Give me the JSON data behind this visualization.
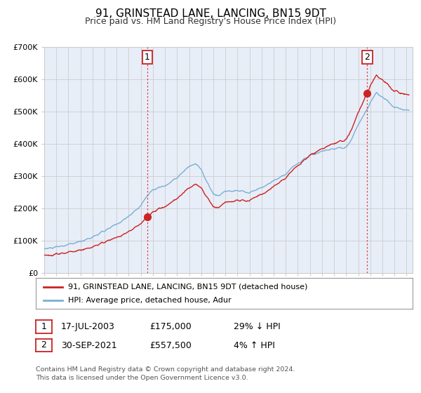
{
  "title": "91, GRINSTEAD LANE, LANCING, BN15 9DT",
  "subtitle": "Price paid vs. HM Land Registry's House Price Index (HPI)",
  "background_color": "#ffffff",
  "plot_bg_color": "#e8eef8",
  "ylim": [
    0,
    700000
  ],
  "yticks": [
    0,
    100000,
    200000,
    300000,
    400000,
    500000,
    600000,
    700000
  ],
  "ytick_labels": [
    "£0",
    "£100K",
    "£200K",
    "£300K",
    "£400K",
    "£500K",
    "£600K",
    "£700K"
  ],
  "xlim_start": 1995.0,
  "xlim_end": 2025.5,
  "sale1_date_num": 2003.54,
  "sale1_price": 175000,
  "sale2_date_num": 2021.75,
  "sale2_price": 557500,
  "legend_line1": "91, GRINSTEAD LANE, LANCING, BN15 9DT (detached house)",
  "legend_line2": "HPI: Average price, detached house, Adur",
  "table_row1": [
    "1",
    "17-JUL-2003",
    "£175,000",
    "29% ↓ HPI"
  ],
  "table_row2": [
    "2",
    "30-SEP-2021",
    "£557,500",
    "4% ↑ HPI"
  ],
  "footer": "Contains HM Land Registry data © Crown copyright and database right 2024.\nThis data is licensed under the Open Government Licence v3.0.",
  "hpi_color": "#7ab0d4",
  "sale_color": "#cc2222",
  "grid_color": "#cccccc",
  "dashed_color": "#dd4444",
  "box_edge_color": "#cc2222",
  "title_fontsize": 11,
  "subtitle_fontsize": 9
}
